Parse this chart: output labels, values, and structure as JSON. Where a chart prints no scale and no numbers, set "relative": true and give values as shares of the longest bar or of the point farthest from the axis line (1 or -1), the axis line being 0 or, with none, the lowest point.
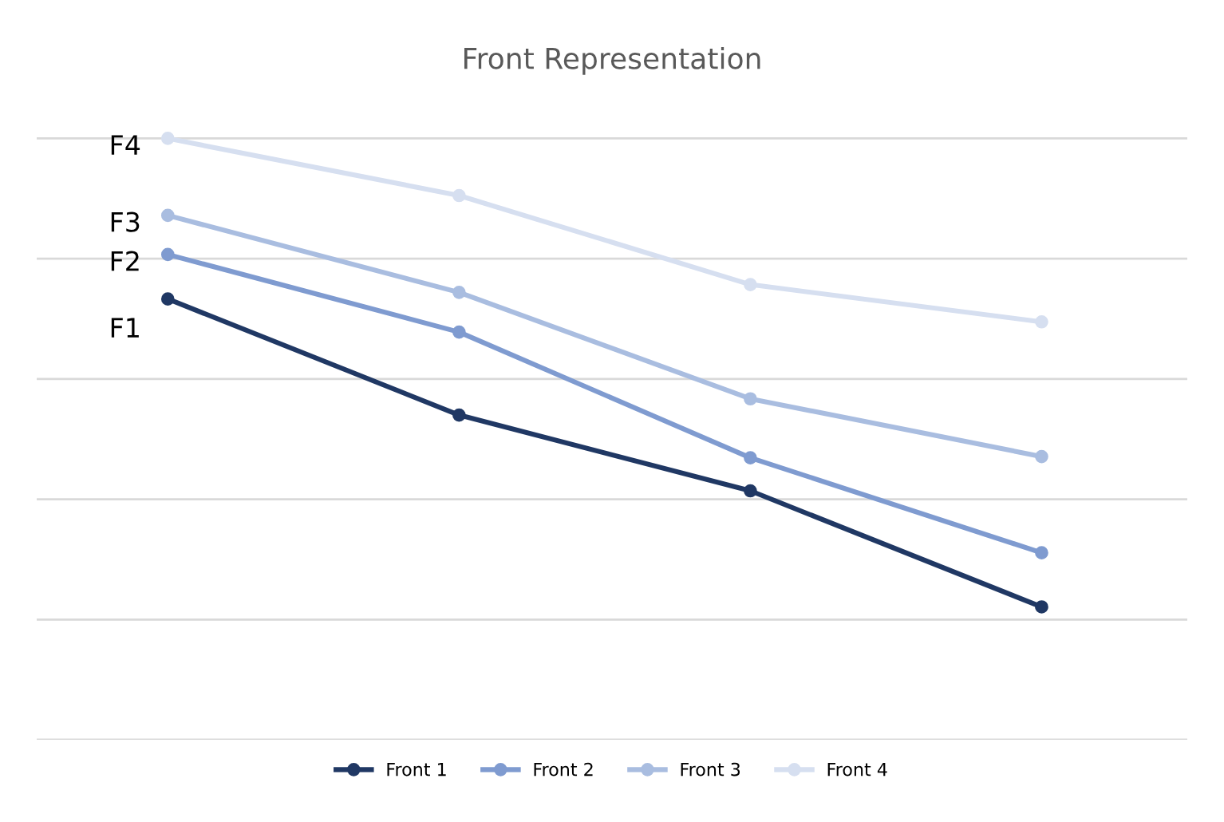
{
  "chart_data": {
    "type": "line",
    "title": "Front Representation",
    "relative": true,
    "categories": [
      null,
      null,
      null,
      null
    ],
    "series": [
      {
        "name": "Front 1",
        "color": "#203864",
        "values": [
          0.733,
          0.54,
          0.414,
          0.221
        ]
      },
      {
        "name": "Front 2",
        "color": "#7f9bd0",
        "values": [
          0.807,
          0.678,
          0.469,
          0.311
        ]
      },
      {
        "name": "Front 3",
        "color": "#a9bde0",
        "values": [
          0.872,
          0.744,
          0.567,
          0.471
        ]
      },
      {
        "name": "Front 4",
        "color": "#d6dff0",
        "values": [
          1,
          0.905,
          0.757,
          0.695
        ]
      }
    ],
    "annotations": [
      "F1",
      "F2",
      "F3",
      "F4"
    ],
    "marker": "circle",
    "grid": "y",
    "legend": "bottom",
    "tick_labels": false
  }
}
